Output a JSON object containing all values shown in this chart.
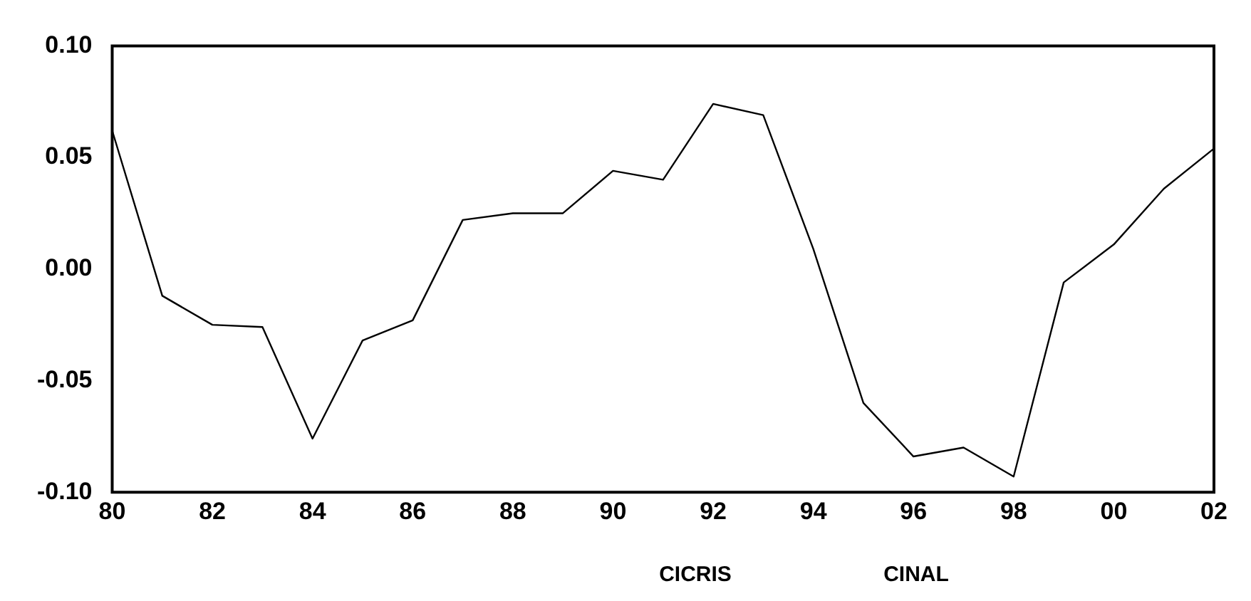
{
  "chart_data": {
    "type": "line",
    "categories": [
      "80",
      null,
      "82",
      null,
      "84",
      null,
      "86",
      null,
      "88",
      null,
      "90",
      null,
      "92",
      null,
      "94",
      null,
      "96",
      null,
      "98",
      null,
      "00",
      null,
      "02"
    ],
    "series": [
      {
        "color": "#000000",
        "values": [
          0.062,
          -0.012,
          -0.025,
          -0.026,
          -0.076,
          -0.032,
          -0.023,
          0.022,
          0.025,
          0.025,
          0.044,
          0.04,
          0.074,
          0.069,
          0.009,
          -0.06,
          -0.084,
          -0.08,
          -0.093,
          -0.006,
          0.011,
          0.036,
          0.054
        ]
      }
    ],
    "ylim": [
      -0.1,
      0.1
    ],
    "yticks": [
      {
        "value": -0.1,
        "label": "-0.10"
      },
      {
        "value": -0.05,
        "label": "-0.05"
      },
      {
        "value": 0,
        "label": "0.00"
      },
      {
        "value": 0.05,
        "label": "0.05"
      },
      {
        "value": 0.1,
        "label": "0.10"
      }
    ],
    "grid": false,
    "legend": false,
    "marker": "none",
    "line_style": "solid",
    "annotations": [
      "CICRIS",
      "CINAL"
    ]
  }
}
